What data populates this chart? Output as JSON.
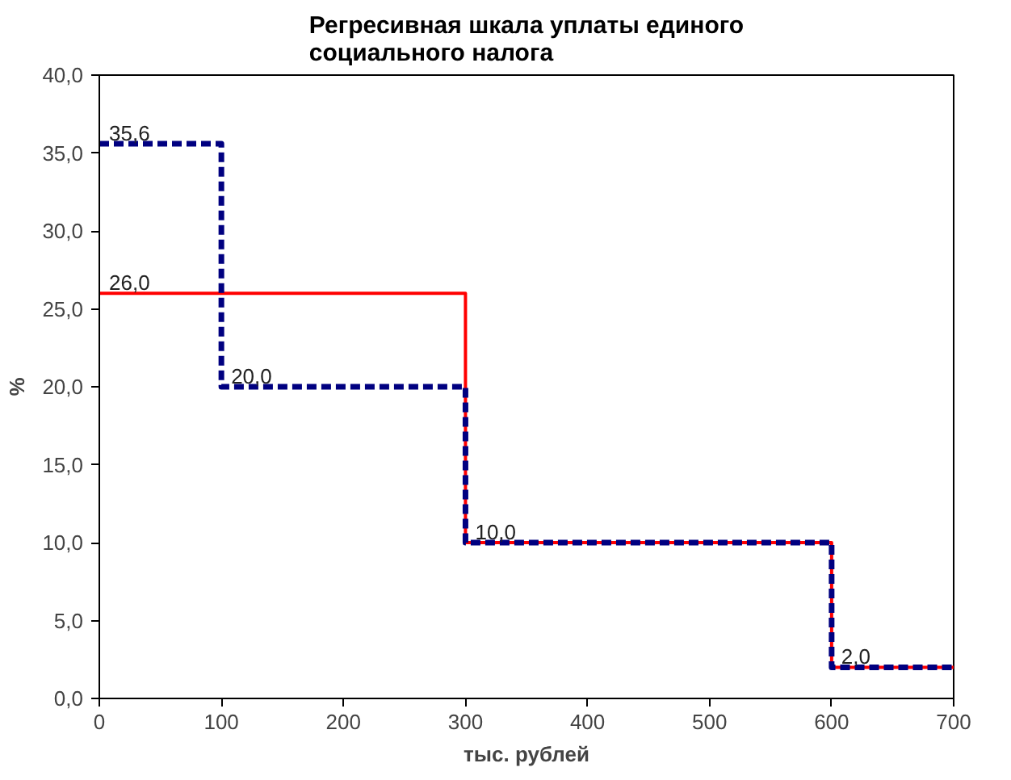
{
  "chart_data": {
    "type": "step",
    "title": "Регресивная шкала уплаты единого социального налога",
    "xlabel": "тыс. рублей",
    "ylabel": "%",
    "xlim": [
      0,
      700
    ],
    "xticks": [
      0,
      100,
      200,
      300,
      400,
      500,
      600,
      700
    ],
    "ylim": [
      0,
      40
    ],
    "yticks": [
      {
        "value": 0,
        "label": "0,0"
      },
      {
        "value": 5,
        "label": "5,0"
      },
      {
        "value": 10,
        "label": "10,0"
      },
      {
        "value": 15,
        "label": "15,0"
      },
      {
        "value": 20,
        "label": "20,0"
      },
      {
        "value": 25,
        "label": "25,0"
      },
      {
        "value": 30,
        "label": "30,0"
      },
      {
        "value": 35,
        "label": "35,0"
      },
      {
        "value": 40,
        "label": "40,0"
      }
    ],
    "grid": false,
    "marker": "none",
    "series": [
      {
        "color": "#ff0000",
        "line_style": "solid",
        "x": [
          0,
          300,
          600,
          700
        ],
        "values": [
          26,
          10,
          2,
          2
        ],
        "value_labels": [
          "26,0",
          "10,0",
          "2,0",
          null
        ]
      },
      {
        "color": "#000080",
        "line_style": "dashed",
        "x": [
          0,
          100,
          300,
          600,
          700
        ],
        "values": [
          35.6,
          20,
          10,
          2,
          2
        ],
        "value_labels": [
          "35,6",
          "20,0",
          null,
          null,
          null
        ]
      }
    ]
  }
}
